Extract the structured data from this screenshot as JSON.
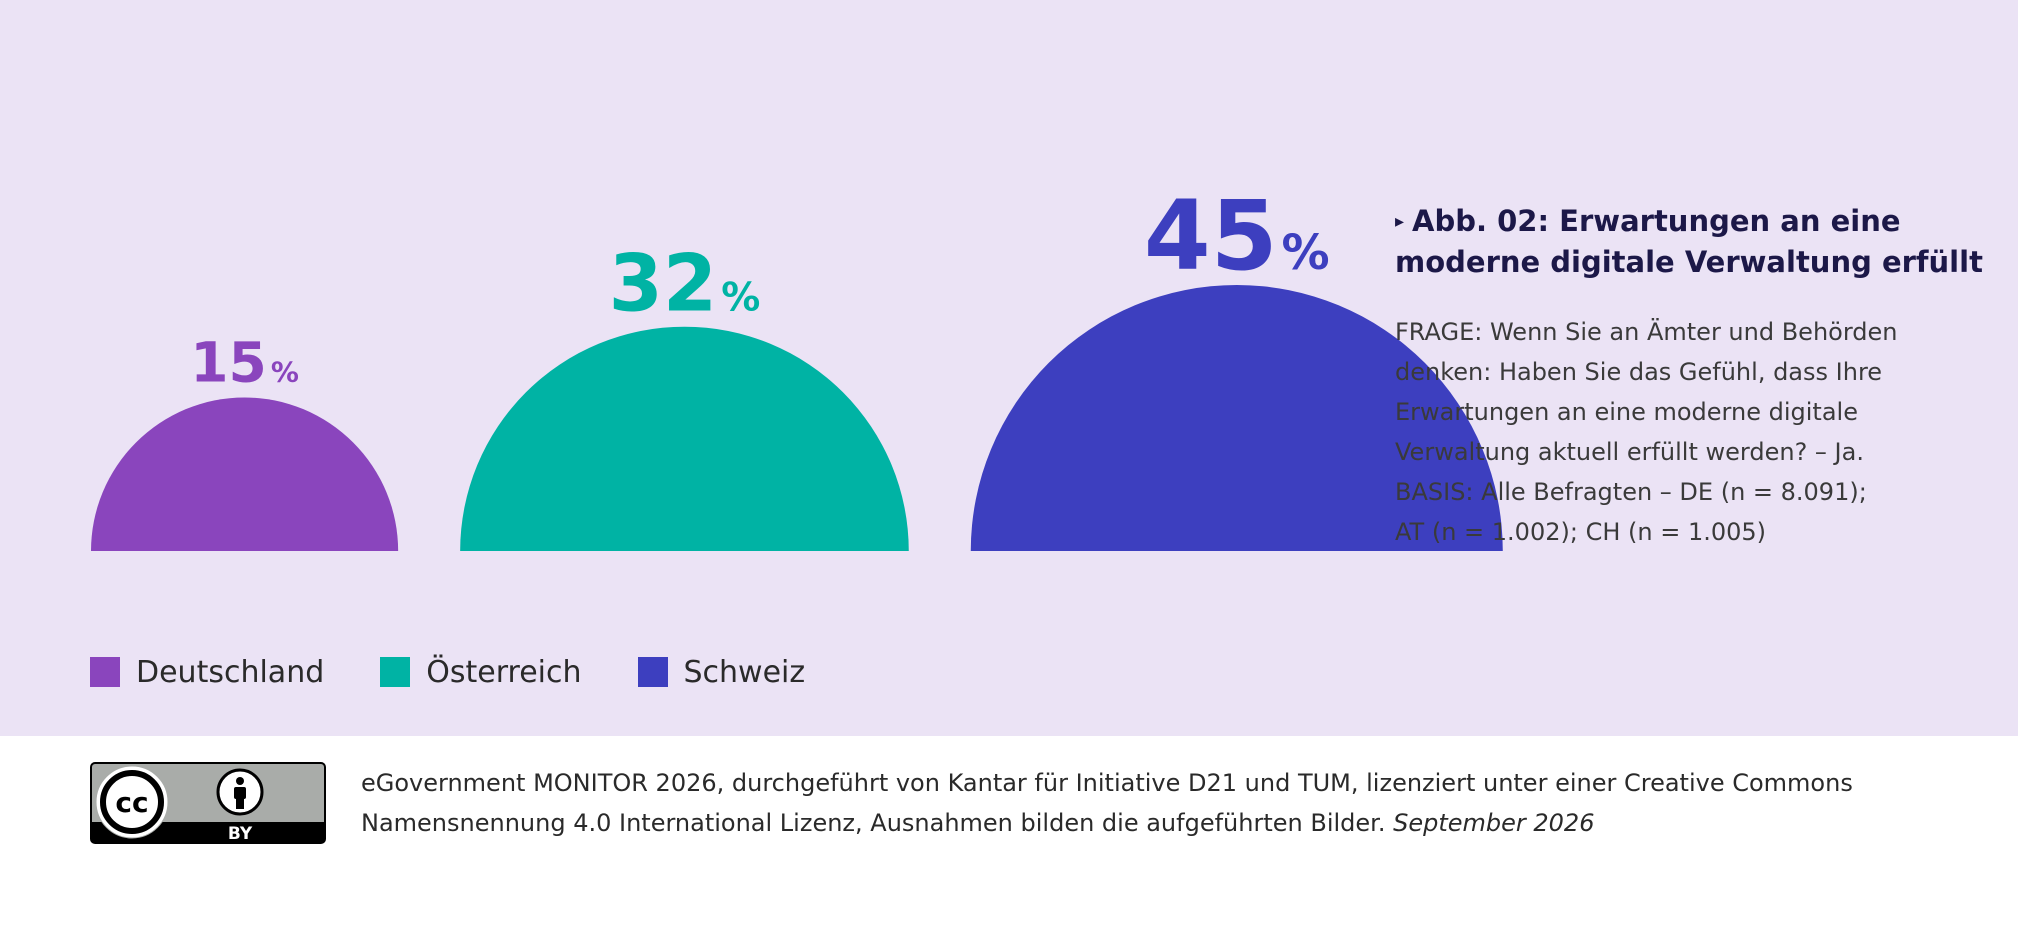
{
  "chart_data": {
    "type": "semicircle",
    "categories": [
      "Deutschland",
      "Österreich",
      "Schweiz"
    ],
    "values": [
      15,
      32,
      45
    ],
    "value_unit": "%",
    "colors": [
      "#8a45bd",
      "#00b3a4",
      "#3d3fbf"
    ],
    "legend_position": "bottom-left"
  },
  "title_block": {
    "marker": "▸",
    "title": "Abb. 02: Erwartungen an eine moderne digitale Verwaltung erfüllt",
    "question_lines": [
      "FRAGE: Wenn Sie an Ämter und Behörden",
      "denken: Haben Sie das Gefühl, dass Ihre",
      "Erwartungen an eine moderne digitale",
      "Verwaltung aktuell erfüllt werden? – Ja.",
      "BASIS: Alle Befragten – DE (n = 8.091);",
      "AT (n = 1.002); CH (n = 1.005)"
    ]
  },
  "legend": {
    "items": [
      {
        "label": "Deutschland",
        "color": "#8a45bd"
      },
      {
        "label": "Österreich",
        "color": "#00b3a4"
      },
      {
        "label": "Schweiz",
        "color": "#3d3fbf"
      }
    ]
  },
  "footer": {
    "license_badge_cc": "cc",
    "license_badge_by": "BY",
    "person_icon": "person-icon",
    "text": "eGovernment MONITOR 2026, durchgeführt von Kantar für Initiative D21 und TUM, lizenziert unter einer Creative Commons Namensnennung 4.0 International Lizenz, Ausnahmen bilden die aufgeführten Bilder.",
    "date": "September 2026"
  }
}
